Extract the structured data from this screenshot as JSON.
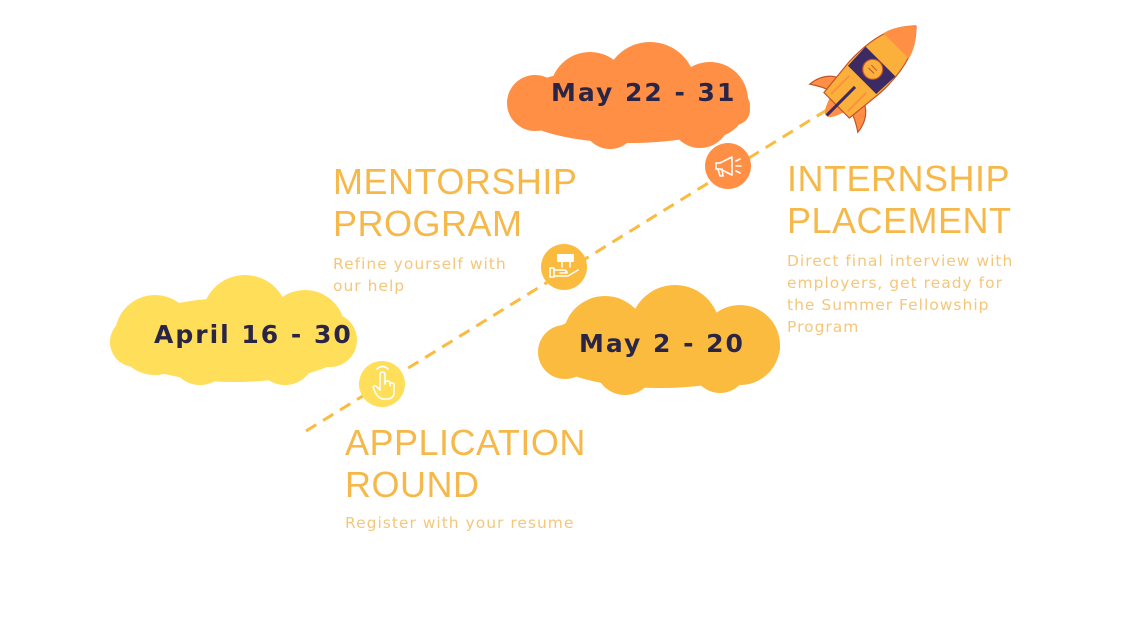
{
  "colors": {
    "accent_orange": "#ff8f45",
    "amber": "#fbbb3f",
    "yellow": "#ffde59",
    "text_dark": "#2b2545",
    "heading": "#f7b84a",
    "rocket_body": "#fbb03b",
    "rocket_purple": "#3b2a63"
  },
  "stages": [
    {
      "date": "April 16 - 30",
      "title_line1": "APPLICATION",
      "title_line2": "ROUND",
      "description": "Register with your resume",
      "icon": "pointer-hand-icon"
    },
    {
      "date": "May 2 - 20",
      "title_line1": "MENTORSHIP",
      "title_line2": "PROGRAM",
      "description": "Refine yourself with our help",
      "icon": "mentor-hand-icon"
    },
    {
      "date": "May 22 - 31",
      "title_line1": "INTERNSHIP",
      "title_line2": "PLACEMENT",
      "description": "Direct final interview with employers, get ready for the Summer Fellowship Program",
      "icon": "megaphone-icon"
    }
  ],
  "decorations": {
    "rocket": "rocket-icon"
  }
}
